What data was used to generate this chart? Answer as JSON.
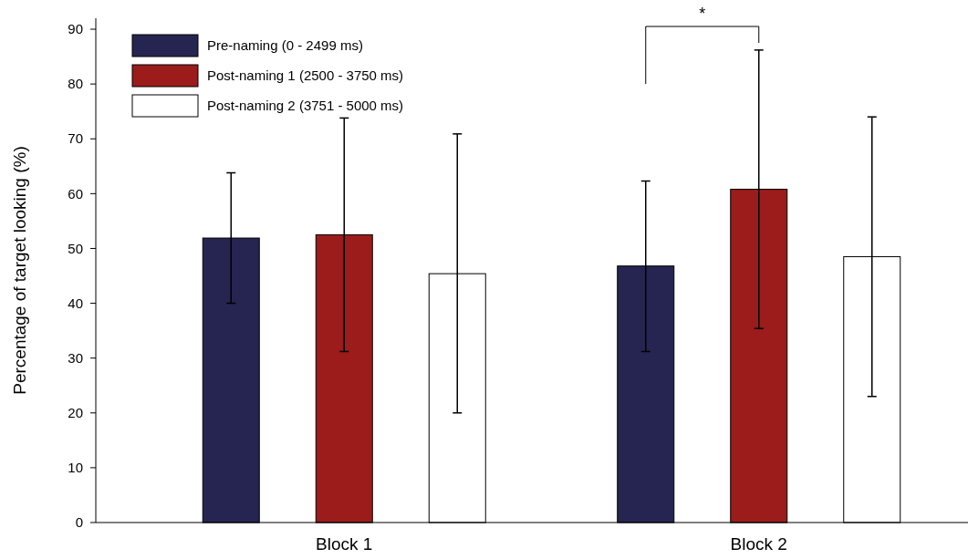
{
  "chart_data": {
    "type": "bar",
    "ylabel": "Percentage of target looking (%)",
    "categories": [
      "Block 1",
      "Block 2"
    ],
    "series": [
      {
        "name": "Pre-naming (0 - 2499 ms)",
        "color": "#262551",
        "values": [
          51.9,
          46.8
        ],
        "errors": [
          [
            40,
            63.8
          ],
          [
            31.2,
            62.3
          ]
        ]
      },
      {
        "name": "Post-naming 1 (2500 - 3750 ms)",
        "color": "#9b1c1a",
        "values": [
          52.5,
          60.8
        ],
        "errors": [
          [
            31.2,
            73.8
          ],
          [
            35.4,
            86.2
          ]
        ]
      },
      {
        "name": "Post-naming 2 (3751 - 5000 ms)",
        "color": "#ffffff",
        "values": [
          45.4,
          48.5
        ],
        "errors": [
          [
            20,
            70.9
          ],
          [
            23,
            74
          ]
        ]
      }
    ],
    "ylim": [
      0,
      92
    ],
    "yticks": [
      0,
      10,
      20,
      30,
      40,
      50,
      60,
      70,
      80,
      90
    ],
    "grid": false,
    "legend": "top left",
    "annotations": [
      "*"
    ]
  }
}
